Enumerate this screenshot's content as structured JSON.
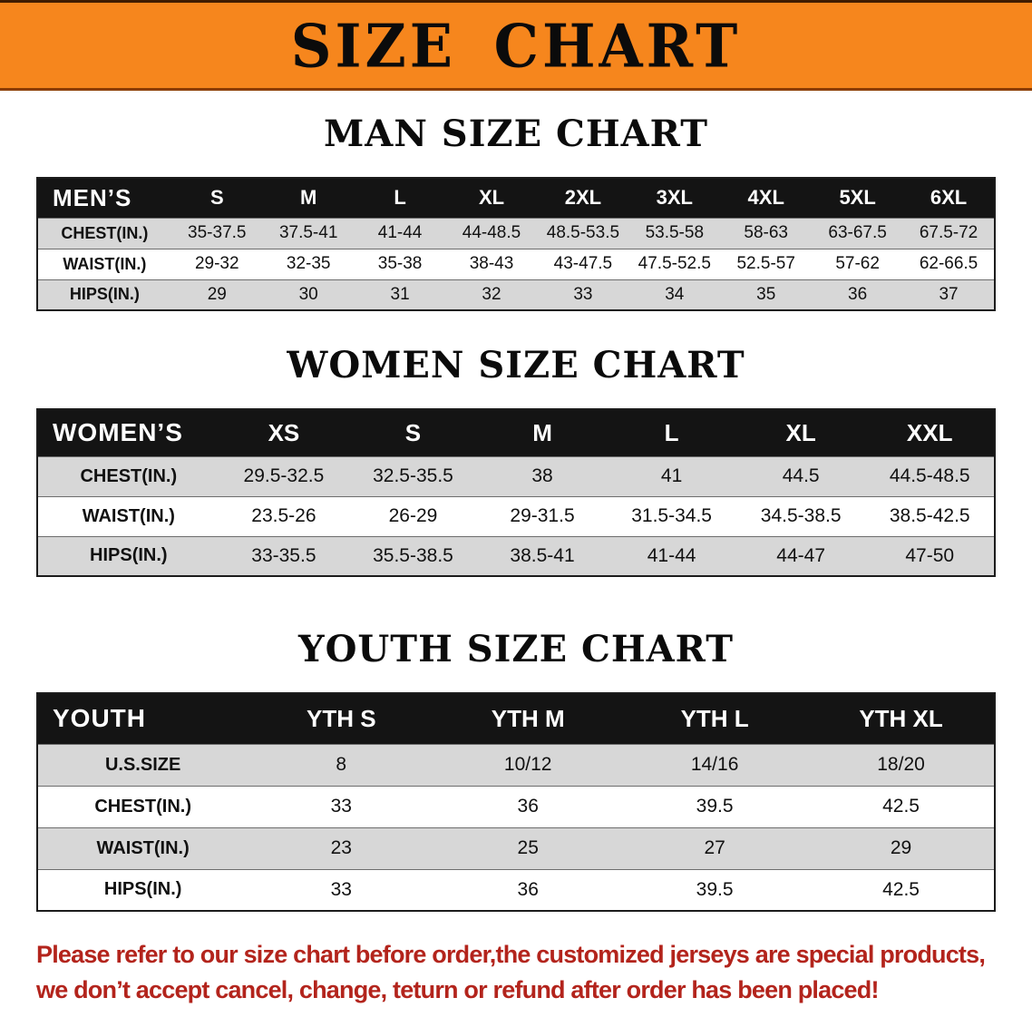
{
  "banner": {
    "title": "SIZE CHART",
    "bg_color": "#F6861D"
  },
  "sections": [
    {
      "heading": "MAN SIZE CHART",
      "table": {
        "label": "MEN’S",
        "columns": [
          "S",
          "M",
          "L",
          "XL",
          "2XL",
          "3XL",
          "4XL",
          "5XL",
          "6XL"
        ],
        "rows": [
          {
            "label": "CHEST(IN.)",
            "values": [
              "35-37.5",
              "37.5-41",
              "41-44",
              "44-48.5",
              "48.5-53.5",
              "53.5-58",
              "58-63",
              "63-67.5",
              "67.5-72"
            ]
          },
          {
            "label": "WAIST(IN.)",
            "values": [
              "29-32",
              "32-35",
              "35-38",
              "38-43",
              "43-47.5",
              "47.5-52.5",
              "52.5-57",
              "57-62",
              "62-66.5"
            ]
          },
          {
            "label": "HIPS(IN.)",
            "values": [
              "29",
              "30",
              "31",
              "32",
              "33",
              "34",
              "35",
              "36",
              "37"
            ]
          }
        ]
      }
    },
    {
      "heading": "WOMEN SIZE CHART",
      "table": {
        "label": "WOMEN’S",
        "columns": [
          "XS",
          "S",
          "M",
          "L",
          "XL",
          "XXL"
        ],
        "rows": [
          {
            "label": "CHEST(IN.)",
            "values": [
              "29.5-32.5",
              "32.5-35.5",
              "38",
              "41",
              "44.5",
              "44.5-48.5"
            ]
          },
          {
            "label": "WAIST(IN.)",
            "values": [
              "23.5-26",
              "26-29",
              "29-31.5",
              "31.5-34.5",
              "34.5-38.5",
              "38.5-42.5"
            ]
          },
          {
            "label": "HIPS(IN.)",
            "values": [
              "33-35.5",
              "35.5-38.5",
              "38.5-41",
              "41-44",
              "44-47",
              "47-50"
            ]
          }
        ]
      }
    },
    {
      "heading": "YOUTH SIZE CHART",
      "table": {
        "label": "YOUTH",
        "columns": [
          "YTH S",
          "YTH M",
          "YTH L",
          "YTH XL"
        ],
        "rows": [
          {
            "label": "U.S.SIZE",
            "values": [
              "8",
              "10/12",
              "14/16",
              "18/20"
            ]
          },
          {
            "label": "CHEST(IN.)",
            "values": [
              "33",
              "36",
              "39.5",
              "42.5"
            ]
          },
          {
            "label": "WAIST(IN.)",
            "values": [
              "23",
              "25",
              "27",
              "29"
            ]
          },
          {
            "label": "HIPS(IN.)",
            "values": [
              "33",
              "36",
              "39.5",
              "42.5"
            ]
          }
        ]
      }
    }
  ],
  "disclaimer": {
    "lines": [
      "Please refer to our size chart before order,the customized jerseys are special products,",
      "we don’t accept cancel, change, teturn or refund after order has been placed!"
    ]
  },
  "colors": {
    "banner_orange": "#F6861D",
    "header_black": "#141414",
    "row_shade": "#d7d7d7",
    "disclaimer_red": "#b3241c"
  }
}
